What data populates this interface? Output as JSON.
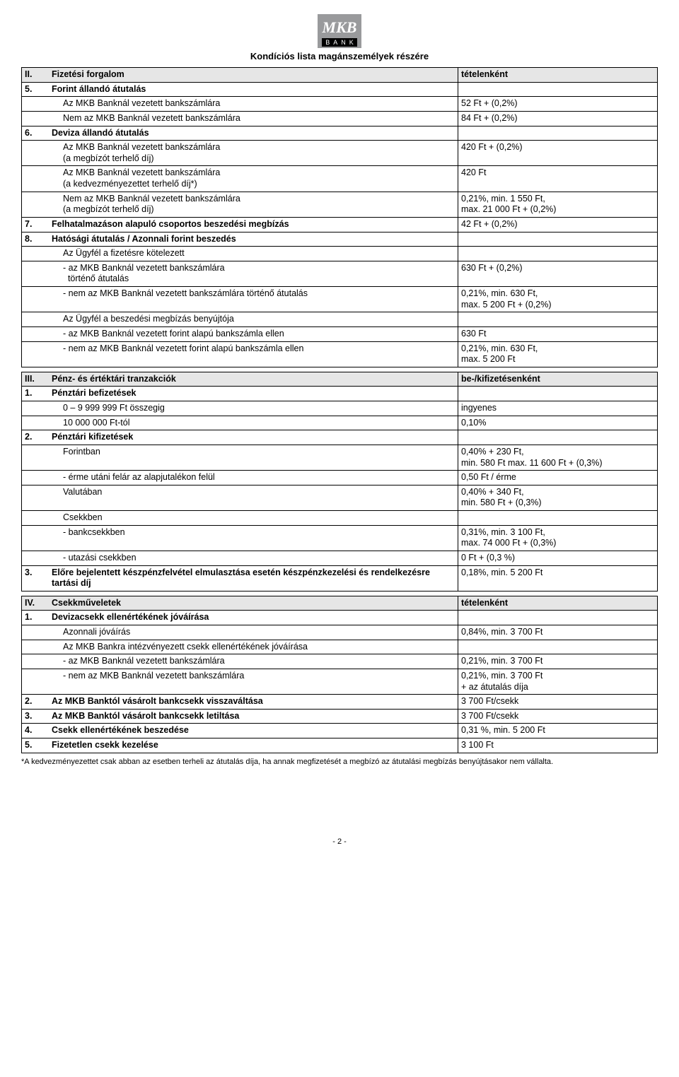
{
  "logo": {
    "top": "MKB",
    "bottom": "BANK"
  },
  "doc_title": "Kondíciós lista magánszemélyek részére",
  "s2": {
    "num": "II.",
    "title": "Fizetési forgalom",
    "col": "tételenként",
    "r5": {
      "n": "5.",
      "t": "Forint állandó átutalás"
    },
    "r5a": {
      "t": "Az MKB Banknál vezetett bankszámlára",
      "v": "52 Ft + (0,2%)"
    },
    "r5b": {
      "t": "Nem az MKB Banknál vezetett bankszámlára",
      "v": "84 Ft + (0,2%)"
    },
    "r6": {
      "n": "6.",
      "t": "Deviza állandó átutalás"
    },
    "r6a": {
      "t": "Az MKB Banknál vezetett bankszámlára\n(a megbízót terhelő díj)",
      "v": "420 Ft + (0,2%)"
    },
    "r6b": {
      "t": "Az MKB Banknál vezetett bankszámlára\n(a kedvezményezettet terhelő díj*)",
      "v": "420 Ft"
    },
    "r6c": {
      "t": "Nem az MKB Banknál vezetett bankszámlára\n(a megbízót terhelő díj)",
      "v": "0,21%, min. 1 550 Ft,\nmax. 21 000 Ft + (0,2%)"
    },
    "r7": {
      "n": "7.",
      "t": "Felhatalmazáson alapuló csoportos beszedési megbízás",
      "v": "42 Ft + (0,2%)"
    },
    "r8": {
      "n": "8.",
      "t": "Hatósági átutalás / Azonnali forint beszedés"
    },
    "r8a": {
      "t": "Az Ügyfél a fizetésre kötelezett"
    },
    "r8a1": {
      "t": "- az MKB Banknál vezetett bankszámlára\n  történő átutalás",
      "v": "630 Ft + (0,2%)"
    },
    "r8a2": {
      "t": "- nem az MKB Banknál vezetett bankszámlára történő átutalás",
      "v": "0,21%, min. 630 Ft,\nmax. 5 200 Ft + (0,2%)"
    },
    "r8b": {
      "t": "Az Ügyfél a beszedési megbízás benyújtója"
    },
    "r8b1": {
      "t": "- az MKB Banknál vezetett forint alapú bankszámla ellen",
      "v": "630 Ft"
    },
    "r8b2": {
      "t": "- nem az MKB Banknál vezetett forint alapú bankszámla ellen",
      "v": "0,21%, min. 630 Ft,\nmax. 5 200 Ft"
    }
  },
  "s3": {
    "num": "III.",
    "title": "Pénz- és értéktári tranzakciók",
    "col": "be-/kifizetésenként",
    "r1": {
      "n": "1.",
      "t": "Pénztári befizetések"
    },
    "r1a": {
      "t": "0 – 9 999 999 Ft összegig",
      "v": "ingyenes"
    },
    "r1b": {
      "t": "10 000 000 Ft-tól",
      "v": "0,10%"
    },
    "r2": {
      "n": "2.",
      "t": "Pénztári kifizetések"
    },
    "r2a": {
      "t": "Forintban",
      "v": "0,40% + 230 Ft,\nmin. 580 Ft max. 11 600 Ft + (0,3%)"
    },
    "r2b": {
      "t": "- érme utáni felár az alapjutalékon felül",
      "v": "0,50 Ft / érme"
    },
    "r2c": {
      "t": "Valutában",
      "v": "0,40% + 340 Ft,\nmin. 580 Ft + (0,3%)"
    },
    "r2d": {
      "t": "Csekkben"
    },
    "r2d1": {
      "t": "- bankcsekkben",
      "v": "0,31%, min. 3 100 Ft,\nmax. 74 000 Ft + (0,3%)"
    },
    "r2d2": {
      "t": "- utazási csekkben",
      "v": "0 Ft + (0,3 %)"
    },
    "r3": {
      "n": "3.",
      "t": "Előre bejelentett készpénzfelvétel elmulasztása esetén készpénzkezelési és rendelkezésre tartási díj",
      "v": "0,18%, min. 5 200 Ft"
    }
  },
  "s4": {
    "num": "IV.",
    "title": "Csekkműveletek",
    "col": "tételenként",
    "r1": {
      "n": "1.",
      "t": "Devizacsekk ellenértékének jóváírása"
    },
    "r1a": {
      "t": "Azonnali jóváírás",
      "v": "0,84%, min. 3 700 Ft"
    },
    "r1b": {
      "t": "Az MKB Bankra intézvényezett csekk ellenértékének jóváírása"
    },
    "r1b1": {
      "t": "- az MKB Banknál vezetett bankszámlára",
      "v": "0,21%, min. 3 700 Ft"
    },
    "r1b2": {
      "t": "- nem az MKB Banknál vezetett bankszámlára",
      "v": "0,21%, min. 3 700 Ft\n+ az átutalás díja"
    },
    "r2": {
      "n": "2.",
      "t": "Az MKB Banktól vásárolt bankcsekk visszaváltása",
      "v": "3 700 Ft/csekk"
    },
    "r3": {
      "n": "3.",
      "t": "Az MKB Banktól vásárolt bankcsekk letiltása",
      "v": "3 700 Ft/csekk"
    },
    "r4": {
      "n": "4.",
      "t": "Csekk ellenértékének beszedése",
      "v": "0,31 %, min. 5 200 Ft"
    },
    "r5": {
      "n": "5.",
      "t": "Fizetetlen csekk kezelése",
      "v": "3 100 Ft"
    }
  },
  "footnote": "*A kedvezményezettet csak abban az esetben terheli az átutalás díja, ha annak megfizetését a megbízó az átutalási megbízás benyújtásakor nem vállalta.",
  "page_num": "- 2 -"
}
